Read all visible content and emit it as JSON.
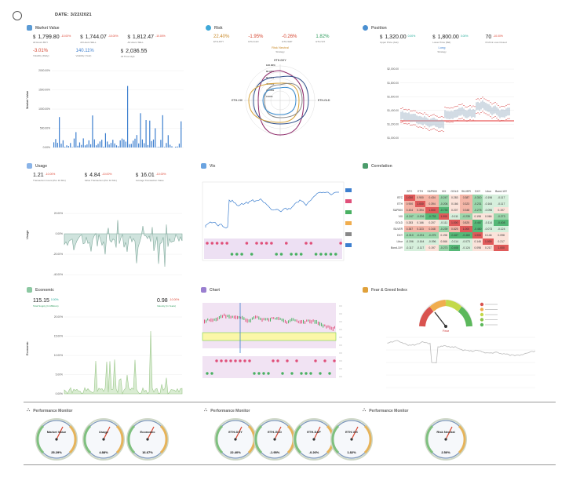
{
  "header": {
    "date": "DATE:  3/22/2021"
  },
  "market_value": {
    "title": "Market Value",
    "stats": [
      {
        "cur": "$",
        "value": "1,799.80",
        "chg": "-10.00%",
        "sub": "All Hours BUY"
      },
      {
        "cur": "$",
        "value": "1,744.07",
        "chg": "-10.00%",
        "sub": "All Hours SELL"
      },
      {
        "cur": "$",
        "value": "1,812.47",
        "chg": "-10.00%",
        "sub": "All Hours SELL"
      }
    ],
    "row2": [
      {
        "value": "-3.01%",
        "sub": "Volatility (Daily)"
      },
      {
        "value": "140.11%",
        "sub": "Volatility (Year)"
      },
      {
        "cur": "$",
        "value": "2,036.55",
        "sub": "All Time High"
      }
    ],
    "ylabel": "Market Value",
    "yticks": [
      "2000.00%",
      "1500.00%",
      "1000.00%",
      "500.00%",
      "0.00%"
    ]
  },
  "risk": {
    "title": "Risk",
    "stats": [
      {
        "value": "22.40%",
        "sub": "ETH-DXY"
      },
      {
        "value": "-1.95%",
        "sub": "ETH-GLD"
      },
      {
        "value": "-0.26%",
        "sub": "ETH-S&P"
      },
      {
        "value": "1.82%",
        "sub": "ETH-VIX"
      }
    ],
    "center_title": "Risk Neutral",
    "center_sub": "Strategy",
    "axes": [
      "ETH-DXY",
      "ETH-GLD",
      "ETH-S&P",
      "ETH-VIX"
    ],
    "rings": [
      "100.00%",
      "80.00%",
      "60.00%",
      "40.00%",
      "20.00%",
      "0.00%"
    ]
  },
  "position": {
    "title": "Position",
    "stats": [
      {
        "cur": "$",
        "value": "1,320.00",
        "chg": "0.00%",
        "sub": "Upper Price (Ask)"
      },
      {
        "cur": "$",
        "value": "1,800.00",
        "chg": "0.00%",
        "sub": "Lower Price (Bid)"
      },
      {
        "value": "70",
        "chg": "-10.00%",
        "sub": "Profit & Loss Closed"
      }
    ],
    "center_title": "Long",
    "center_sub": "Strategy",
    "yticks": [
      "$2,000.00",
      "$1,800.00",
      "$1,600.00",
      "$1,400.00",
      "$1,200.00",
      "$1,000.00"
    ]
  },
  "usage": {
    "title": "Usage",
    "stats": [
      {
        "value": "1.21",
        "chg": "-10.00%",
        "sub": "Transaction Count (Per 10 Min)"
      },
      {
        "cur": "$",
        "value": "4.84",
        "chg": "-10.00%",
        "sub": "Value Transaction (Per 10 Min)"
      },
      {
        "cur": "$",
        "value": "16.01",
        "chg": "-10.00%",
        "sub": "Average Transaction Value"
      }
    ],
    "ylabel": "Usage",
    "yticks": [
      "20.00%",
      "0.00%",
      "-20.00%",
      "-40.00%"
    ]
  },
  "vix": {
    "title": "Vix"
  },
  "correlation": {
    "title": "Correlation",
    "headers": [
      "BTC",
      "ETH",
      "S&P500",
      "VIX",
      "GOLD",
      "SILVER",
      "DXY",
      "Libor",
      "Bond-10Y"
    ],
    "rows": [
      {
        "label": "BTC",
        "cells": [
          "1.000",
          "0.900",
          "0.434",
          "-0.247",
          "0.283",
          "0.387",
          "-0.310",
          "-0.196",
          "-0.117"
        ]
      },
      {
        "label": "ETH",
        "cells": [
          "0.900",
          "1.000",
          "0.394",
          "-0.206",
          "0.166",
          "0.323",
          "-0.231",
          "-0.164",
          "-0.117"
        ]
      },
      {
        "label": "S&P500",
        "cells": [
          "0.434",
          "0.394",
          "1.000",
          "-0.733",
          "0.207",
          "0.348",
          "-0.275",
          "-0.096",
          "0.197"
        ]
      },
      {
        "label": "VIX",
        "cells": [
          "-0.247",
          "-0.206",
          "-0.733",
          "1.000",
          "-0.111",
          "-0.239",
          "0.198",
          "0.066",
          "-0.273"
        ]
      },
      {
        "label": "GOLD",
        "cells": [
          "0.283",
          "0.166",
          "0.207",
          "-0.111",
          "1.000",
          "0.825",
          "-0.467",
          "-0.114",
          "-0.408"
        ]
      },
      {
        "label": "SILVER",
        "cells": [
          "0.387",
          "0.323",
          "0.348",
          "-0.239",
          "0.825",
          "1.000",
          "-0.460",
          "-0.073",
          "-0.124"
        ]
      },
      {
        "label": "DXY",
        "cells": [
          "-0.310",
          "-0.231",
          "-0.275",
          "0.198",
          "-0.467",
          "-0.460",
          "1.000",
          "0.146",
          "0.098"
        ]
      },
      {
        "label": "Libor",
        "cells": [
          "-0.196",
          "-0.164",
          "-0.096",
          "0.066",
          "-0.114",
          "-0.073",
          "0.146",
          "1.000",
          "0.217"
        ]
      },
      {
        "label": "Bond-10Y",
        "cells": [
          "-0.117",
          "-0.117",
          "0.197",
          "-0.273",
          "-0.408",
          "-0.124",
          "0.098",
          "0.217",
          "1.000"
        ]
      }
    ]
  },
  "economic": {
    "title": "Economic",
    "stats": [
      {
        "value": "115.15",
        "chg": "0.00%",
        "sub": "Total Supply (In Millions)"
      },
      {
        "value": "0.98",
        "chg": "-10.00%",
        "sub": "Velocity (In Years)"
      }
    ],
    "ylabel": "Economic",
    "yticks": [
      "20.00%",
      "15.00%",
      "10.00%",
      "5.00%",
      "0.00%"
    ]
  },
  "chart": {
    "title": "Chart"
  },
  "fear_greed": {
    "title": "Fear & Greed Index",
    "needle_label": "Fear"
  },
  "performance": {
    "title": "Performance Monitor",
    "groups": [
      [
        {
          "label": "Market Value",
          "value": "25.29%"
        },
        {
          "label": "Usage",
          "value": "4.88%"
        },
        {
          "label": "Economic",
          "value": "16.67%"
        }
      ],
      [
        {
          "label": "ETH-DXY",
          "value": "22.40%"
        },
        {
          "label": "ETH-GLD",
          "value": "-1.95%"
        },
        {
          "label": "ETH-S&P",
          "value": "-0.26%"
        },
        {
          "label": "ETH-VIX",
          "value": "1.82%"
        }
      ],
      [
        {
          "label": "Risk Neutral",
          "value": "2.50%"
        }
      ]
    ]
  },
  "colors": {
    "accent": "#3d7fcf",
    "up": "#2a9a5a",
    "down": "#d6452f"
  }
}
